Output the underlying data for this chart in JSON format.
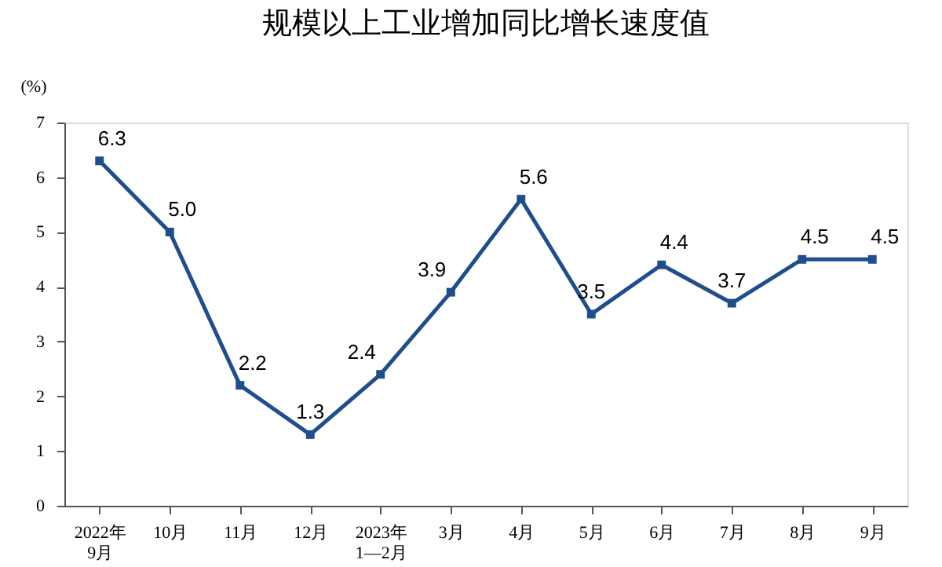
{
  "chart_data": {
    "type": "line",
    "title": "规模以上工业增加同比增长速度值",
    "ylabel": "(%)",
    "categories": [
      "2022年\n9月",
      "10月",
      "11月",
      "12月",
      "2023年\n1—2月",
      "3月",
      "4月",
      "5月",
      "6月",
      "7月",
      "8月",
      "9月"
    ],
    "series": [
      {
        "color": "#1f4e8c",
        "values": [
          6.3,
          5.0,
          2.2,
          1.3,
          2.4,
          3.9,
          5.6,
          3.5,
          4.4,
          3.7,
          4.5,
          4.5
        ]
      }
    ],
    "ylim": [
      0,
      7
    ],
    "yticks": [
      0,
      1,
      2,
      3,
      4,
      5,
      6,
      7
    ],
    "value_labels": [
      "6.3",
      "5.0",
      "2.2",
      "1.3",
      "2.4",
      "3.9",
      "5.6",
      "3.5",
      "4.4",
      "3.7",
      "4.5",
      "4.5"
    ],
    "marker": "square",
    "line_style": "solid",
    "grid": false
  }
}
